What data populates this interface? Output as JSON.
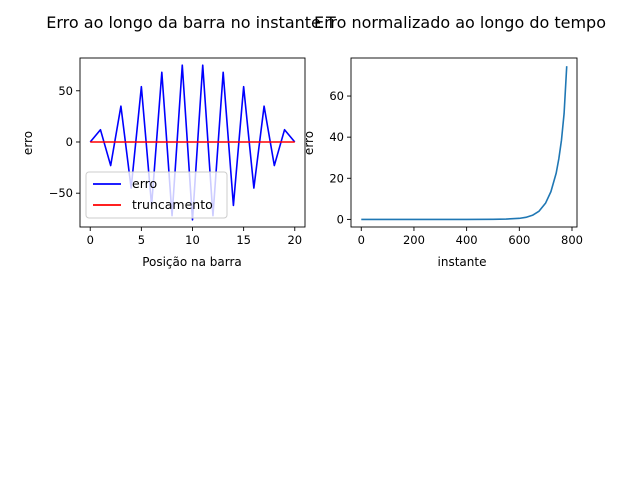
{
  "chart_data": [
    {
      "type": "line",
      "title": "Erro ao longo da barra no instante T",
      "xlabel": "Posição na barra",
      "ylabel": "erro",
      "xlim": [
        -1,
        21
      ],
      "ylim": [
        -83,
        82
      ],
      "xticks": [
        0,
        5,
        10,
        15,
        20
      ],
      "yticks": [
        -50,
        0,
        50
      ],
      "grid": false,
      "legend": "lower-left",
      "series": [
        {
          "name": "erro",
          "color": "#0000ff",
          "x": [
            0,
            1,
            2,
            3,
            4,
            5,
            6,
            7,
            8,
            9,
            10,
            11,
            12,
            13,
            14,
            15,
            16,
            17,
            18,
            19,
            20
          ],
          "values": [
            0,
            12,
            -23,
            35,
            -45,
            54,
            -62,
            68,
            -72,
            75,
            -76,
            75,
            -72,
            68,
            -62,
            54,
            -45,
            35,
            -23,
            12,
            0
          ]
        },
        {
          "name": "truncamento",
          "color": "#ff0000",
          "x": [
            0,
            1,
            2,
            3,
            4,
            5,
            6,
            7,
            8,
            9,
            10,
            11,
            12,
            13,
            14,
            15,
            16,
            17,
            18,
            19,
            20
          ],
          "values": [
            0,
            0,
            0,
            0,
            0,
            0,
            0,
            0,
            0,
            0,
            0,
            0,
            0,
            0,
            0,
            0,
            0,
            0,
            0,
            0,
            0
          ]
        }
      ]
    },
    {
      "type": "line",
      "title": "Erro normalizado ao longo do tempo",
      "xlabel": "instante",
      "ylabel": "erro",
      "xlim": [
        -39,
        819
      ],
      "ylim": [
        -3.7,
        78.5
      ],
      "xticks": [
        0,
        200,
        400,
        600,
        800
      ],
      "yticks": [
        0,
        20,
        40,
        60
      ],
      "grid": false,
      "series": [
        {
          "color": "#1f77b4",
          "x": [
            0,
            100,
            200,
            300,
            400,
            500,
            550,
            600,
            625,
            650,
            675,
            700,
            720,
            740,
            750,
            760,
            770,
            780
          ],
          "values": [
            0,
            0,
            0,
            0,
            0,
            0.05,
            0.15,
            0.5,
            1.0,
            2.0,
            4.0,
            8.0,
            13.5,
            22.5,
            29.5,
            38.5,
            51.5,
            74.5
          ]
        }
      ]
    }
  ]
}
